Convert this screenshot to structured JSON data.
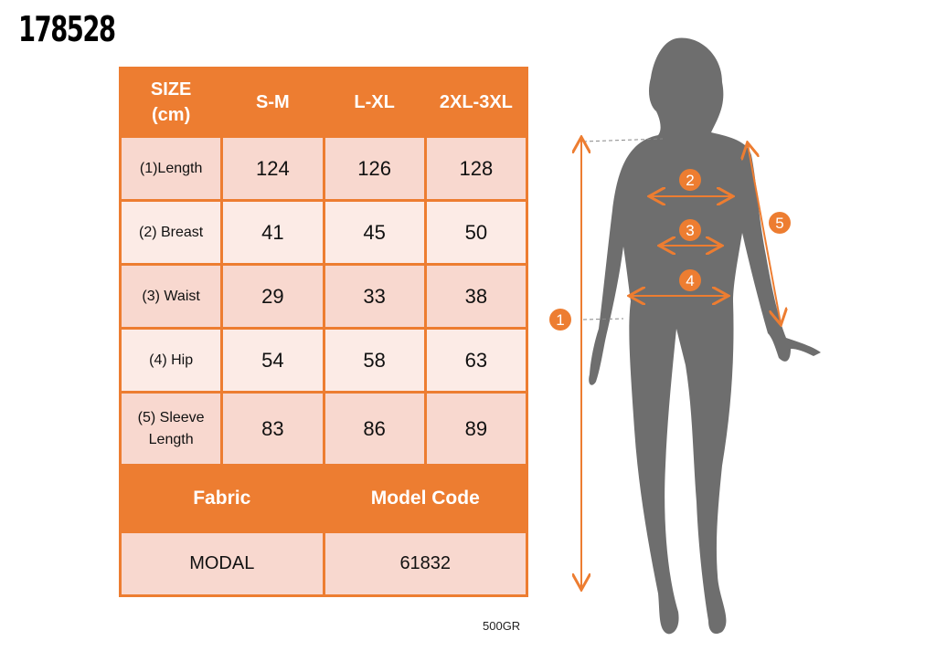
{
  "product_code": "178528",
  "size_table": {
    "header": [
      "SIZE\n(cm)",
      "S-M",
      "L-XL",
      "2XL-3XL"
    ],
    "rows": [
      {
        "label": "(1)Length",
        "values": [
          "124",
          "126",
          "128"
        ]
      },
      {
        "label": "(2) Breast",
        "values": [
          "41",
          "45",
          "50"
        ]
      },
      {
        "label": "(3) Waist",
        "values": [
          "29",
          "33",
          "38"
        ]
      },
      {
        "label": "(4) Hip",
        "values": [
          "54",
          "58",
          "63"
        ]
      },
      {
        "label": "(5) Sleeve Length",
        "values": [
          "83",
          "86",
          "89"
        ]
      }
    ]
  },
  "info_table": {
    "headers": [
      "Fabric",
      "Model Code"
    ],
    "values": [
      "MODAL",
      "61832"
    ]
  },
  "weight": "500GR",
  "figure": {
    "markers": [
      "1",
      "2",
      "3",
      "4",
      "5"
    ]
  },
  "colors": {
    "accent": "#ED7D31",
    "cell_dark": "#F8D8CF",
    "cell_light": "#FCEBE6",
    "silhouette": "#6E6E6E"
  }
}
